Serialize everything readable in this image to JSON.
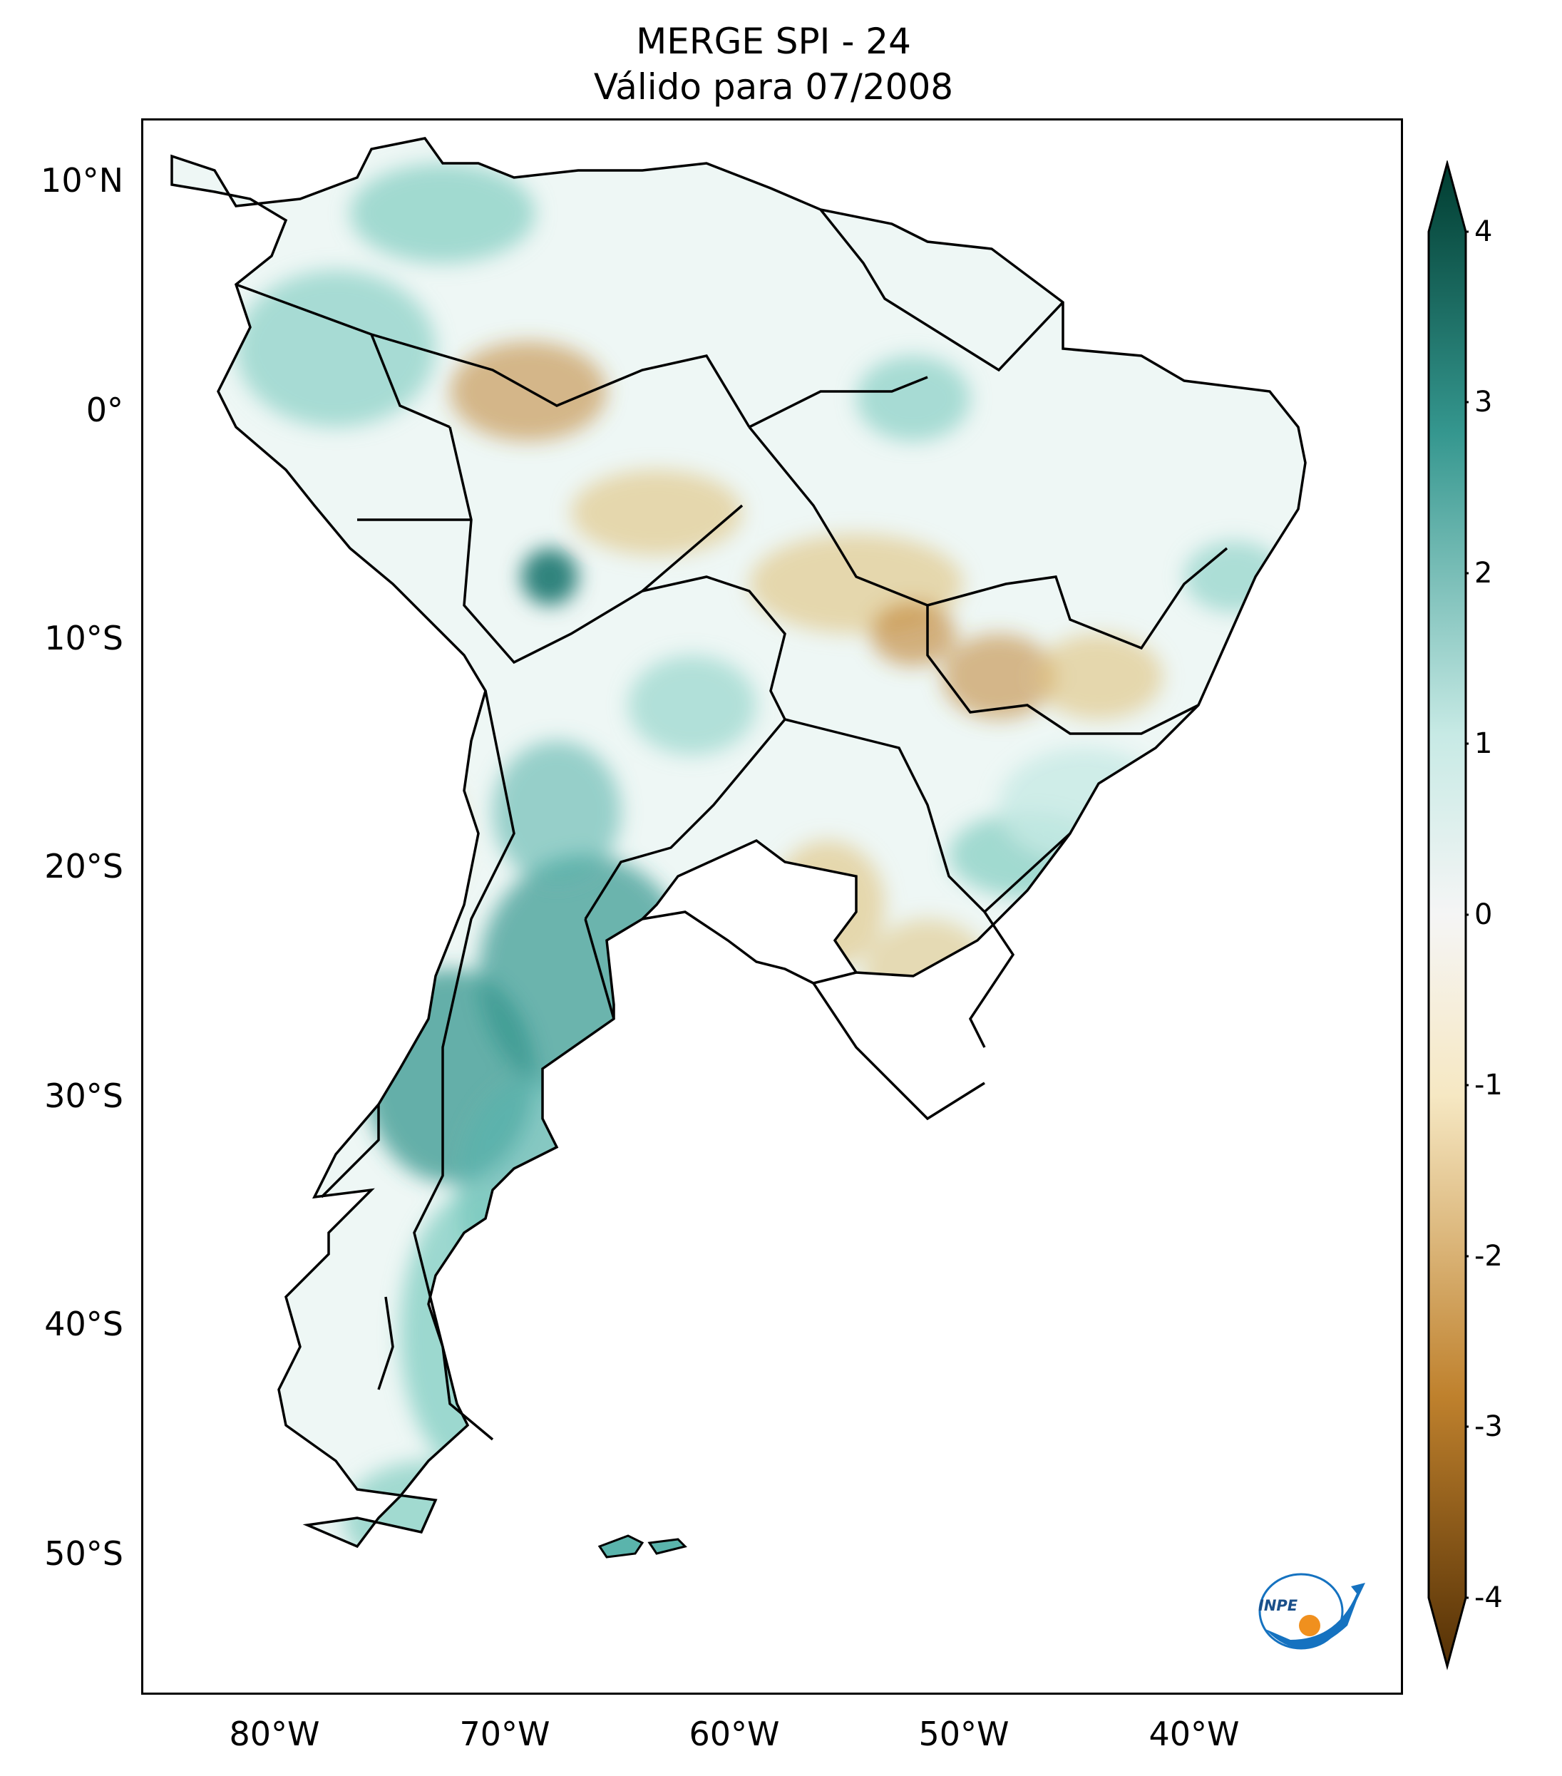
{
  "title": {
    "line1": "MERGE   SPI - 24",
    "line2": "Válido para 07/2008"
  },
  "axes": {
    "lat_ticks": [
      "10°N",
      "0°",
      "10°S",
      "20°S",
      "30°S",
      "40°S",
      "50°S"
    ],
    "lon_ticks": [
      "80°W",
      "70°W",
      "60°W",
      "50°W",
      "40°W"
    ]
  },
  "colorbar": {
    "ticks": [
      "4",
      "3",
      "2",
      "1",
      "0",
      "-1",
      "-2",
      "-3",
      "-4"
    ],
    "min": -4,
    "max": 4,
    "colormap": "BrBG",
    "extend": "both",
    "colors": {
      "strong_dry": "#543005",
      "dry": "#bf812d",
      "mild_dry": "#f6e8c3",
      "neutral": "#f5f5f5",
      "mild_wet": "#c7eae5",
      "wet": "#35978f",
      "strong_wet": "#003c30"
    }
  },
  "logo": {
    "text": "INPE",
    "accent_orange": "#f0901e",
    "accent_blue": "#1572c0"
  },
  "map": {
    "region": "South America",
    "variable": "SPI-24"
  }
}
